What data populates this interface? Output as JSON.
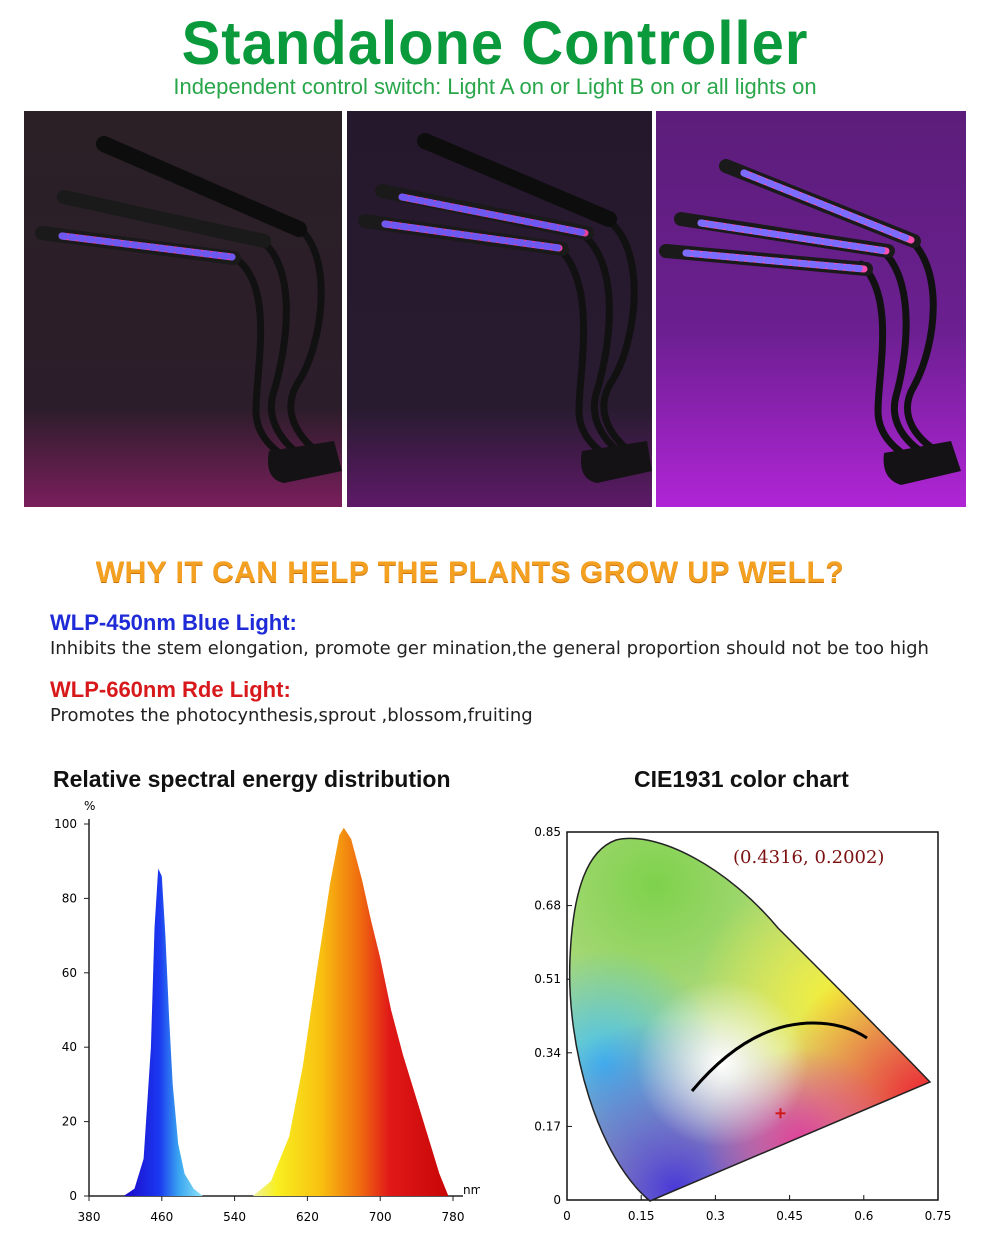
{
  "header": {
    "title": "Standalone Controller",
    "subtitle": "Independent control switch: Light A on  or  Light B on  or all lights on"
  },
  "photos": [
    {
      "name": "light-a-on",
      "lit": [
        false,
        false,
        true
      ],
      "glow": "#c0207c"
    },
    {
      "name": "light-b-on",
      "lit": [
        false,
        true,
        true
      ],
      "glow": "#9a1d8a"
    },
    {
      "name": "all-lights-on",
      "lit": [
        true,
        true,
        true
      ],
      "glow": "#b520d8"
    }
  ],
  "why": {
    "heading": "WHY IT CAN HELP THE PLANTS GROW UP WELL?",
    "blue_title": "WLP-450nm Blue Light:",
    "blue_desc": "Inhibits the stem elongation, promote ger mination,the general proportion should not be too high",
    "red_title": "WLP-660nm Rde Light:",
    "red_desc": "Promotes the photocynthesis,sprout ,blossom,fruiting",
    "blue_color": "#1e2bd6",
    "red_color": "#d7191c"
  },
  "chart_data": [
    {
      "type": "area",
      "title": "Relative spectral energy distribution",
      "ylabel": "%",
      "xlabel": "nm",
      "x_ticks": [
        380,
        460,
        540,
        620,
        700,
        780
      ],
      "y_ticks": [
        0,
        20,
        40,
        60,
        80,
        100
      ],
      "xlim": [
        380,
        780
      ],
      "ylim": [
        0,
        100
      ],
      "series": [
        {
          "x": [
            418,
            430,
            440,
            448,
            452,
            456,
            460,
            464,
            468,
            472,
            478,
            485,
            495,
            505
          ],
          "values": [
            0,
            2,
            10,
            40,
            72,
            88,
            86,
            70,
            48,
            30,
            14,
            6,
            2,
            0
          ]
        },
        {
          "x": [
            560,
            580,
            600,
            615,
            630,
            645,
            655,
            660,
            668,
            680,
            690,
            700,
            712,
            725,
            740,
            755,
            765,
            775
          ],
          "values": [
            0,
            4,
            16,
            35,
            60,
            84,
            97,
            99,
            96,
            85,
            74,
            64,
            50,
            38,
            26,
            14,
            6,
            0
          ]
        }
      ]
    },
    {
      "type": "scatter",
      "title": "CIE1931 color chart",
      "x_ticks": [
        "0",
        "0.15",
        "0.3",
        "0.45",
        "0.6",
        "0.75"
      ],
      "y_ticks": [
        "0",
        "0.17",
        "0.34",
        "0.51",
        "0.68",
        "0.85"
      ],
      "xlim": [
        0,
        0.75
      ],
      "ylim": [
        0,
        0.85
      ],
      "point": {
        "x": 0.4316,
        "y": 0.2002
      },
      "point_label": "(0.4316,  0.2002)"
    }
  ]
}
